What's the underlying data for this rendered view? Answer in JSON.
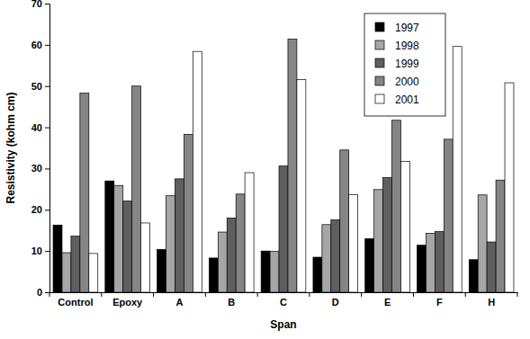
{
  "chart_data": {
    "type": "bar",
    "x_label": "Span",
    "y_label": "Resistivity (kohm cm)",
    "categories": [
      "Control",
      "Epoxy",
      "A",
      "B",
      "C",
      "D",
      "E",
      "F",
      "H"
    ],
    "series": [
      {
        "name": "1997",
        "color": "#000000",
        "values": [
          16.3,
          27,
          10.4,
          8.3,
          10,
          8.5,
          13,
          11.4,
          7.9
        ]
      },
      {
        "name": "1998",
        "color": "#a6a6a6",
        "values": [
          9.6,
          25.9,
          23.4,
          14.6,
          9.9,
          16.4,
          24.9,
          14.3,
          23.6
        ]
      },
      {
        "name": "1999",
        "color": "#5f5f5f",
        "values": [
          13.6,
          22.1,
          27.5,
          18,
          30.6,
          17.6,
          27.8,
          14.7,
          12.2
        ]
      },
      {
        "name": "2000",
        "color": "#858585",
        "values": [
          48.3,
          50,
          38.3,
          23.8,
          61.4,
          34.5,
          41.7,
          37.1,
          27.2
        ]
      },
      {
        "name": "2001",
        "color": "#ffffff",
        "values": [
          9.4,
          16.8,
          58.4,
          29,
          51.6,
          23.7,
          31.7,
          59.6,
          50.8
        ]
      }
    ],
    "ylim": [
      0,
      70
    ],
    "yticks": [
      0,
      10,
      20,
      30,
      40,
      50,
      60,
      70
    ],
    "legend": "top-right",
    "grid": false
  }
}
